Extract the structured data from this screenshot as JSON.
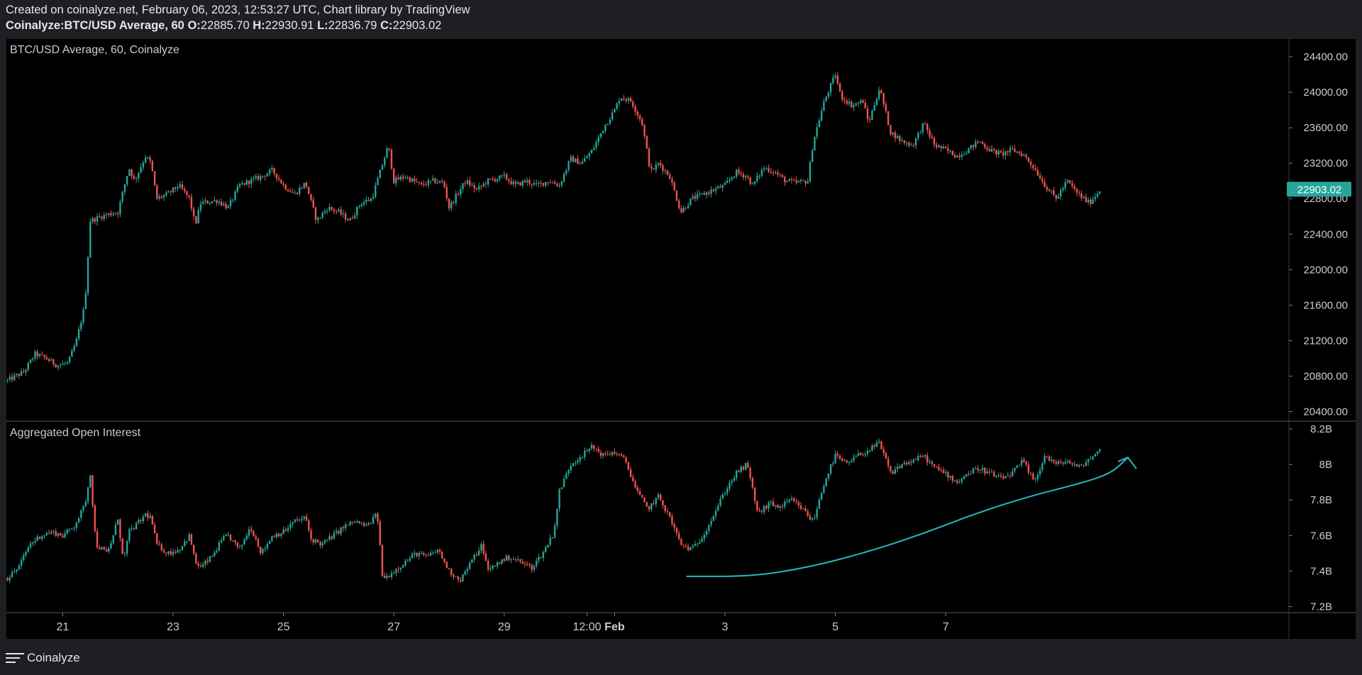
{
  "header": {
    "created_line": "Created on coinalyze.net, February 06, 2023, 12:53:27 UTC, Chart library by TradingView",
    "symbol": "Coinalyze:BTC/USD Average, 60",
    "o_label": "O:",
    "o_value": "22885.70",
    "h_label": "H:",
    "h_value": "22930.91",
    "l_label": "L:",
    "l_value": "22836.79",
    "c_label": "C:",
    "c_value": "22903.02"
  },
  "footer": {
    "brand": "Coinalyze"
  },
  "colors": {
    "background": "#000000",
    "frame": "#1e1f23",
    "up": "#26a69a",
    "down": "#ef5350",
    "price_tag": "#26a69a",
    "annotation": "#27b7c2"
  },
  "chart_data": [
    {
      "type": "candlestick",
      "title": "BTC/USD Average, 60, Coinalyze",
      "ylim": [
        20300,
        24600
      ],
      "y_ticks": [
        "24400.00",
        "24000.00",
        "23600.00",
        "23200.00",
        "22800.00",
        "22400.00",
        "22000.00",
        "21600.00",
        "21200.00",
        "20800.00",
        "20400.00"
      ],
      "last_price_label": "22903.02",
      "x_ticks": [
        "21",
        "23",
        "25",
        "27",
        "29",
        "12:00",
        "Feb",
        "3",
        "5",
        "7"
      ],
      "x_tick_day_offsets": [
        1,
        3,
        5,
        7,
        9,
        10.5,
        11,
        13,
        15,
        17
      ],
      "close_path": [
        [
          0.0,
          20750
        ],
        [
          0.3,
          20850
        ],
        [
          0.5,
          21050
        ],
        [
          0.7,
          21000
        ],
        [
          0.9,
          20920
        ],
        [
          1.1,
          20950
        ],
        [
          1.25,
          21200
        ],
        [
          1.4,
          21600
        ],
        [
          1.5,
          22550
        ],
        [
          1.7,
          22600
        ],
        [
          1.8,
          22620
        ],
        [
          2.0,
          22650
        ],
        [
          2.2,
          23150
        ],
        [
          2.3,
          23000
        ],
        [
          2.5,
          23280
        ],
        [
          2.6,
          23200
        ],
        [
          2.7,
          22800
        ],
        [
          2.9,
          22850
        ],
        [
          3.1,
          22950
        ],
        [
          3.3,
          22800
        ],
        [
          3.4,
          22500
        ],
        [
          3.5,
          22750
        ],
        [
          3.8,
          22780
        ],
        [
          4.0,
          22700
        ],
        [
          4.2,
          22950
        ],
        [
          4.4,
          23000
        ],
        [
          4.6,
          23050
        ],
        [
          4.8,
          23120
        ],
        [
          5.0,
          22950
        ],
        [
          5.2,
          22850
        ],
        [
          5.4,
          22980
        ],
        [
          5.6,
          22550
        ],
        [
          5.8,
          22700
        ],
        [
          6.0,
          22650
        ],
        [
          6.2,
          22550
        ],
        [
          6.4,
          22750
        ],
        [
          6.6,
          22800
        ],
        [
          6.75,
          23100
        ],
        [
          6.9,
          23400
        ],
        [
          7.0,
          23000
        ],
        [
          7.2,
          23050
        ],
        [
          7.5,
          22950
        ],
        [
          7.7,
          23000
        ],
        [
          7.9,
          22980
        ],
        [
          8.0,
          22700
        ],
        [
          8.3,
          23000
        ],
        [
          8.5,
          22900
        ],
        [
          8.7,
          23000
        ],
        [
          9.0,
          23050
        ],
        [
          9.2,
          22950
        ],
        [
          9.4,
          23000
        ],
        [
          9.6,
          22950
        ],
        [
          9.8,
          23000
        ],
        [
          10.0,
          22950
        ],
        [
          10.2,
          23250
        ],
        [
          10.4,
          23200
        ],
        [
          10.6,
          23350
        ],
        [
          10.8,
          23600
        ],
        [
          11.0,
          23800
        ],
        [
          11.1,
          23950
        ],
        [
          11.3,
          23900
        ],
        [
          11.5,
          23650
        ],
        [
          11.65,
          23100
        ],
        [
          11.8,
          23200
        ],
        [
          12.0,
          23050
        ],
        [
          12.2,
          22650
        ],
        [
          12.4,
          22800
        ],
        [
          12.6,
          22850
        ],
        [
          12.8,
          22900
        ],
        [
          13.0,
          22950
        ],
        [
          13.2,
          23100
        ],
        [
          13.4,
          23050
        ],
        [
          13.5,
          22950
        ],
        [
          13.7,
          23150
        ],
        [
          13.9,
          23100
        ],
        [
          14.1,
          23000
        ],
        [
          14.3,
          22980
        ],
        [
          14.5,
          23000
        ],
        [
          14.6,
          23450
        ],
        [
          14.8,
          23900
        ],
        [
          15.0,
          24200
        ],
        [
          15.1,
          23950
        ],
        [
          15.3,
          23850
        ],
        [
          15.5,
          23900
        ],
        [
          15.6,
          23650
        ],
        [
          15.8,
          24050
        ],
        [
          15.9,
          23800
        ],
        [
          16.0,
          23550
        ],
        [
          16.2,
          23450
        ],
        [
          16.4,
          23400
        ],
        [
          16.6,
          23650
        ],
        [
          16.8,
          23400
        ],
        [
          17.0,
          23350
        ],
        [
          17.2,
          23280
        ],
        [
          17.4,
          23350
        ],
        [
          17.6,
          23450
        ],
        [
          17.8,
          23350
        ],
        [
          18.0,
          23300
        ],
        [
          18.2,
          23350
        ],
        [
          18.4,
          23300
        ],
        [
          18.6,
          23150
        ],
        [
          18.8,
          22950
        ],
        [
          19.0,
          22800
        ],
        [
          19.2,
          23000
        ],
        [
          19.4,
          22850
        ],
        [
          19.6,
          22750
        ],
        [
          19.8,
          22903
        ]
      ]
    },
    {
      "type": "candlestick",
      "title": "Aggregated Open Interest",
      "ylim": [
        7.17,
        8.24
      ],
      "y_ticks": [
        "8.2B",
        "8B",
        "7.8B",
        "7.6B",
        "7.4B",
        "7.2B"
      ],
      "close_path": [
        [
          0.0,
          7.36
        ],
        [
          0.2,
          7.42
        ],
        [
          0.4,
          7.55
        ],
        [
          0.6,
          7.6
        ],
        [
          0.8,
          7.62
        ],
        [
          1.0,
          7.6
        ],
        [
          1.2,
          7.65
        ],
        [
          1.4,
          7.77
        ],
        [
          1.5,
          7.95
        ],
        [
          1.6,
          7.55
        ],
        [
          1.8,
          7.5
        ],
        [
          1.9,
          7.58
        ],
        [
          2.0,
          7.7
        ],
        [
          2.1,
          7.45
        ],
        [
          2.2,
          7.62
        ],
        [
          2.4,
          7.68
        ],
        [
          2.5,
          7.72
        ],
        [
          2.6,
          7.7
        ],
        [
          2.7,
          7.55
        ],
        [
          2.9,
          7.5
        ],
        [
          3.1,
          7.52
        ],
        [
          3.3,
          7.6
        ],
        [
          3.4,
          7.45
        ],
        [
          3.5,
          7.42
        ],
        [
          3.7,
          7.48
        ],
        [
          3.9,
          7.58
        ],
        [
          4.0,
          7.6
        ],
        [
          4.2,
          7.52
        ],
        [
          4.4,
          7.65
        ],
        [
          4.5,
          7.58
        ],
        [
          4.6,
          7.5
        ],
        [
          4.8,
          7.6
        ],
        [
          5.0,
          7.62
        ],
        [
          5.2,
          7.68
        ],
        [
          5.4,
          7.7
        ],
        [
          5.5,
          7.58
        ],
        [
          5.7,
          7.55
        ],
        [
          5.9,
          7.6
        ],
        [
          6.1,
          7.65
        ],
        [
          6.3,
          7.68
        ],
        [
          6.5,
          7.65
        ],
        [
          6.7,
          7.72
        ],
        [
          6.8,
          7.35
        ],
        [
          7.0,
          7.4
        ],
        [
          7.2,
          7.45
        ],
        [
          7.4,
          7.5
        ],
        [
          7.6,
          7.48
        ],
        [
          7.8,
          7.52
        ],
        [
          8.0,
          7.4
        ],
        [
          8.2,
          7.35
        ],
        [
          8.4,
          7.45
        ],
        [
          8.6,
          7.55
        ],
        [
          8.7,
          7.4
        ],
        [
          8.9,
          7.45
        ],
        [
          9.1,
          7.48
        ],
        [
          9.3,
          7.45
        ],
        [
          9.5,
          7.42
        ],
        [
          9.7,
          7.5
        ],
        [
          9.9,
          7.62
        ],
        [
          10.0,
          7.85
        ],
        [
          10.2,
          8.0
        ],
        [
          10.4,
          8.05
        ],
        [
          10.6,
          8.1
        ],
        [
          10.8,
          8.05
        ],
        [
          11.0,
          8.07
        ],
        [
          11.2,
          8.02
        ],
        [
          11.4,
          7.85
        ],
        [
          11.6,
          7.75
        ],
        [
          11.8,
          7.82
        ],
        [
          12.0,
          7.7
        ],
        [
          12.2,
          7.55
        ],
        [
          12.4,
          7.52
        ],
        [
          12.6,
          7.6
        ],
        [
          12.8,
          7.72
        ],
        [
          13.0,
          7.85
        ],
        [
          13.2,
          7.95
        ],
        [
          13.4,
          8.0
        ],
        [
          13.6,
          7.72
        ],
        [
          13.8,
          7.78
        ],
        [
          14.0,
          7.76
        ],
        [
          14.2,
          7.8
        ],
        [
          14.4,
          7.75
        ],
        [
          14.6,
          7.68
        ],
        [
          14.8,
          7.9
        ],
        [
          15.0,
          8.05
        ],
        [
          15.2,
          8.0
        ],
        [
          15.4,
          8.05
        ],
        [
          15.6,
          8.08
        ],
        [
          15.8,
          8.12
        ],
        [
          16.0,
          7.95
        ],
        [
          16.2,
          8.0
        ],
        [
          16.4,
          8.02
        ],
        [
          16.6,
          8.05
        ],
        [
          16.8,
          7.98
        ],
        [
          17.0,
          7.95
        ],
        [
          17.2,
          7.9
        ],
        [
          17.4,
          7.95
        ],
        [
          17.6,
          7.98
        ],
        [
          17.8,
          7.95
        ],
        [
          18.0,
          7.92
        ],
        [
          18.2,
          7.95
        ],
        [
          18.4,
          8.02
        ],
        [
          18.6,
          7.9
        ],
        [
          18.8,
          8.05
        ],
        [
          19.0,
          8.0
        ],
        [
          19.2,
          8.02
        ],
        [
          19.4,
          7.98
        ],
        [
          19.6,
          8.03
        ],
        [
          19.8,
          8.08
        ]
      ],
      "trend_curve": [
        [
          12.3,
          7.37
        ],
        [
          13.5,
          7.37
        ],
        [
          14.5,
          7.42
        ],
        [
          15.5,
          7.5
        ],
        [
          16.5,
          7.6
        ],
        [
          17.5,
          7.72
        ],
        [
          18.5,
          7.82
        ],
        [
          19.4,
          7.89
        ],
        [
          20.0,
          7.95
        ],
        [
          20.3,
          8.04
        ]
      ]
    }
  ]
}
